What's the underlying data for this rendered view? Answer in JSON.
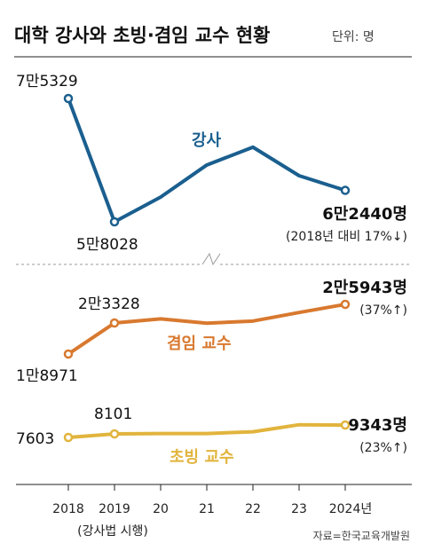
{
  "title": "대학 강사와 초빙·겸임 교수 현황",
  "unit": "단위: 명",
  "source": "자료=한국교육개발원",
  "axis_note": "(강사법 시행)",
  "colors": {
    "lecturer": "#1a5f8f",
    "adjunct": "#d8792f",
    "visiting": "#e2b43d",
    "rule": "#222222",
    "grid": "#9a9a9a"
  },
  "chart_data": {
    "type": "line",
    "categories": [
      "2018",
      "2019",
      "20",
      "21",
      "22",
      "23",
      "2024년"
    ],
    "series": [
      {
        "name": "강사",
        "key": "lecturer",
        "values": [
          75329,
          58028,
          61500,
          66000,
          68500,
          64500,
          62440
        ],
        "start_label": "7만5329",
        "min_label": "5만8028",
        "end_label": "6만2440명",
        "change_label": "(2018년 대비 17%↓)"
      },
      {
        "name": "겸임 교수",
        "key": "adjunct",
        "values": [
          18971,
          23328,
          23900,
          23300,
          23600,
          24800,
          25943
        ],
        "start_label": "1만8971",
        "second_label": "2만3328",
        "end_label": "2만5943명",
        "change_label": "(37%↑)"
      },
      {
        "name": "초빙 교수",
        "key": "visiting",
        "values": [
          7603,
          8101,
          8150,
          8150,
          8400,
          9380,
          9343
        ],
        "start_label": "7603",
        "second_label": "8101",
        "end_label": "9343명",
        "change_label": "(23%↑)"
      }
    ],
    "axis_break": true
  }
}
